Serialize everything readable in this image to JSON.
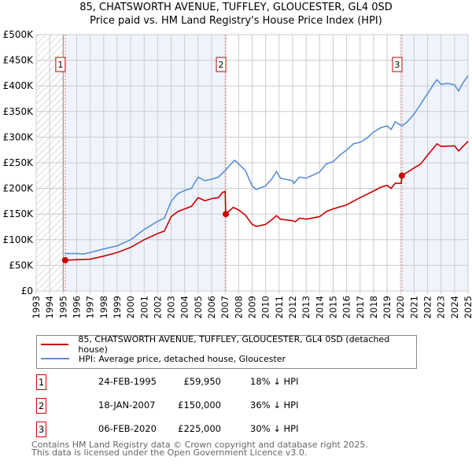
{
  "chart_data": {
    "type": "line",
    "title": "85, CHATSWORTH AVENUE, TUFFLEY, GLOUCESTER, GL4 0SD",
    "subtitle": "Price paid vs. HM Land Registry's House Price Index (HPI)",
    "xlim": [
      1993,
      2025
    ],
    "ylim": [
      0,
      500000
    ],
    "x_ticks": [
      "1993",
      "1994",
      "1995",
      "1996",
      "1997",
      "1998",
      "1999",
      "2000",
      "2001",
      "2002",
      "2003",
      "2004",
      "2005",
      "2006",
      "2007",
      "2008",
      "2009",
      "2010",
      "2011",
      "2012",
      "2013",
      "2014",
      "2015",
      "2016",
      "2017",
      "2018",
      "2019",
      "2020",
      "2021",
      "2022",
      "2023",
      "2024",
      "2025"
    ],
    "y_ticks": [
      {
        "v": 0,
        "label": "£0"
      },
      {
        "v": 50000,
        "label": "£50K"
      },
      {
        "v": 100000,
        "label": "£100K"
      },
      {
        "v": 150000,
        "label": "£150K"
      },
      {
        "v": 200000,
        "label": "£200K"
      },
      {
        "v": 250000,
        "label": "£250K"
      },
      {
        "v": 300000,
        "label": "£300K"
      },
      {
        "v": 350000,
        "label": "£350K"
      },
      {
        "v": 400000,
        "label": "£400K"
      },
      {
        "v": 450000,
        "label": "£450K"
      },
      {
        "v": 500000,
        "label": "£500K"
      }
    ],
    "grid": true,
    "colors": {
      "property": "#cc0000",
      "hpi": "#5b8fd4",
      "shade": "#eef3fc"
    },
    "series": [
      {
        "name": "85, CHATSWORTH AVENUE, TUFFLEY, GLOUCESTER, GL4 0SD (detached house)",
        "x": [
          1995.15,
          1996,
          1997,
          1998,
          1999,
          2000,
          2001,
          2002,
          2002.5,
          2003,
          2003.5,
          2004,
          2004.5,
          2005,
          2005.5,
          2006,
          2006.5,
          2006.8,
          2007.0,
          2007.05,
          2007.6,
          2008,
          2008.5,
          2009,
          2009.3,
          2010,
          2010.5,
          2010.8,
          2011.1,
          2012,
          2012.2,
          2012.5,
          2013,
          2014,
          2014.5,
          2015,
          2016,
          2017,
          2018,
          2018.5,
          2019,
          2019.3,
          2019.6,
          2020.05,
          2020.1,
          2021,
          2021.5,
          2022,
          2022.7,
          2023,
          2024,
          2024.3,
          2025
        ],
        "y": [
          59950,
          61000,
          62000,
          68000,
          75000,
          85000,
          100000,
          112000,
          117000,
          145000,
          155000,
          160000,
          165000,
          182000,
          176000,
          180000,
          182000,
          192000,
          194000,
          150000,
          163000,
          158000,
          148000,
          130000,
          126000,
          130000,
          140000,
          147000,
          140000,
          137000,
          135000,
          142000,
          140000,
          145000,
          155000,
          160000,
          168000,
          182000,
          195000,
          202000,
          206000,
          200000,
          210000,
          210000,
          225000,
          240000,
          248000,
          265000,
          287000,
          282000,
          283000,
          273000,
          292000
        ]
      },
      {
        "name": "HPI: Average price, detached house, Gloucester",
        "x": [
          1995.1,
          1996,
          1996.5,
          1997,
          1998,
          1999,
          2000,
          2001,
          2002,
          2002.5,
          2003,
          2003.5,
          2004,
          2004.5,
          2005,
          2005.5,
          2006,
          2006.5,
          2007,
          2007.7,
          2008,
          2008.5,
          2009,
          2009.3,
          2010,
          2010.5,
          2010.8,
          2011.1,
          2012,
          2012.1,
          2012.5,
          2013,
          2014,
          2014.5,
          2015,
          2015.5,
          2016,
          2016.5,
          2017,
          2017.5,
          2018,
          2018.5,
          2019,
          2019.3,
          2019.6,
          2020.1,
          2020.5,
          2021,
          2021.5,
          2022,
          2022.5,
          2022.7,
          2023,
          2023.5,
          2024,
          2024.3,
          2024.6,
          2025
        ],
        "y": [
          73000,
          73000,
          72000,
          75000,
          82000,
          88000,
          100000,
          120000,
          136000,
          142000,
          175000,
          190000,
          196000,
          200000,
          222000,
          215000,
          218000,
          222000,
          235000,
          255000,
          248000,
          235000,
          205000,
          198000,
          205000,
          220000,
          233000,
          220000,
          215000,
          210000,
          222000,
          220000,
          232000,
          248000,
          252000,
          265000,
          275000,
          287000,
          290000,
          298000,
          310000,
          318000,
          322000,
          315000,
          330000,
          322000,
          330000,
          345000,
          365000,
          385000,
          405000,
          412000,
          403000,
          405000,
          402000,
          390000,
          405000,
          420000
        ]
      }
    ],
    "sales": [
      {
        "n": "1",
        "x": 1995.15,
        "date": "24-FEB-1995",
        "price": "£59,950",
        "value": 59950,
        "hpi": "18% ↓ HPI"
      },
      {
        "n": "2",
        "x": 2007.05,
        "date": "18-JAN-2007",
        "price": "£150,000",
        "value": 150000,
        "hpi": "36% ↓ HPI"
      },
      {
        "n": "3",
        "x": 2020.1,
        "date": "06-FEB-2020",
        "price": "£225,000",
        "value": 225000,
        "hpi": "30% ↓ HPI"
      }
    ]
  },
  "footer": {
    "line1": "Contains HM Land Registry data © Crown copyright and database right 2025.",
    "line2": "This data is licensed under the Open Government Licence v3.0."
  }
}
